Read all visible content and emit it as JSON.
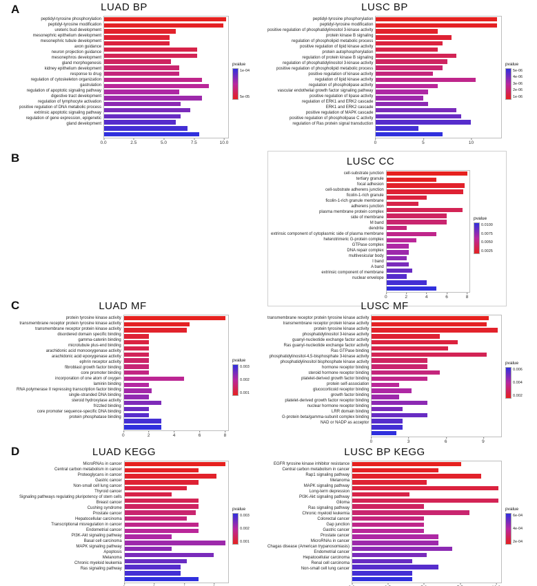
{
  "panels": {
    "a": "A",
    "b": "B",
    "c": "C",
    "d": "D"
  },
  "colors": {
    "background": "#ffffff",
    "bar_red_low_pvalue": "#e6211f",
    "bar_magenta_mid": "#b8279f",
    "bar_blue_high_pvalue": "#3030dd",
    "panel_border": "#bdbdbd"
  },
  "chart_data": [
    {
      "id": "luad-bp",
      "type": "bar",
      "panel": "A",
      "title": "LUAD BP",
      "xlabel": "",
      "ylabel": "",
      "grid": false,
      "legend_position": "right",
      "categories": [
        "peptidyl-tyrosine phosphorylation",
        "peptidyl-tyrosine modification",
        "ureteric bud development",
        "mesonephric epithelium development",
        "mesonephric tubule development",
        "axon guidance",
        "neuron projection guidance",
        "mesonephros development",
        "gland morphogenesis",
        "kidney epithelium development",
        "response to drug",
        "regulation of cytoskeleton organization",
        "gastrulation",
        "regulation of apoptotic signaling pathway",
        "digestive tract development",
        "regulation of lymphocyte activation",
        "positive regulation of DNA metabolic process",
        "extrinsic apoptotic signaling pathway",
        "regulation of gene expression, epigenetic",
        "gland development"
      ],
      "values": [
        10.2,
        10.0,
        6.0,
        5.5,
        5.5,
        7.8,
        7.8,
        5.6,
        6.3,
        6.3,
        8.2,
        8.8,
        6.3,
        8.2,
        6.4,
        7.2,
        6.4,
        6.0,
        7.0,
        8.0
      ],
      "xlim": [
        0,
        10.4
      ],
      "x_tick_labels": [
        "0.0",
        "2.5",
        "5.0",
        "7.5",
        "10.0"
      ],
      "x_tick_values": [
        0,
        2.5,
        5,
        7.5,
        10
      ],
      "legend": {
        "title": "pvalue",
        "ticks": [
          "1e-04",
          "5e-05"
        ]
      }
    },
    {
      "id": "lusc-bp",
      "type": "bar",
      "panel": "A",
      "title": "LUSC BP",
      "xlabel": "",
      "ylabel": "",
      "grid": false,
      "legend_position": "right",
      "categories": [
        "peptidyl-tyrosine phosphorylation",
        "peptidyl-tyrosine modification",
        "positive regulation of phosphatidylinositol 3-kinase activity",
        "protein kinase B signaling",
        "regulation of phospholipid metabolic process",
        "positive regulation of lipid kinase activity",
        "protein autophosphorylation",
        "regulation of protein kinase B signaling",
        "regulation of phosphatidylinositol 3-kinase activity",
        "positive regulation of phospholipid metabolic process",
        "positive regulation of kinase activity",
        "regulation of lipid kinase activity",
        "regulation of phospholipase activity",
        "vascular endothelial growth factor signaling pathway",
        "positive regulation of lipase activity",
        "regulation of ERK1 and ERK2 cascade",
        "ERK1 and ERK2 cascade",
        "positive regulation of MAPK cascade",
        "positive regulation of phospholipase C activity",
        "regulation of Ras protein signal transduction"
      ],
      "values": [
        12.8,
        12.8,
        6.5,
        8.0,
        7.0,
        6.5,
        8.5,
        7.5,
        7.0,
        6.0,
        10.5,
        6.5,
        5.5,
        5.0,
        5.5,
        8.5,
        9.0,
        10.0,
        4.5,
        7.0
      ],
      "xlim": [
        0,
        13.2
      ],
      "x_tick_labels": [
        "0",
        "5",
        "10"
      ],
      "x_tick_values": [
        0,
        5,
        10
      ],
      "legend": {
        "title": "pvalue",
        "ticks": [
          "5e-06",
          "4e-06",
          "3e-06",
          "2e-06",
          "1e-06"
        ]
      }
    },
    {
      "id": "lusc-cc",
      "type": "bar",
      "panel": "B",
      "title": "LUSC CC",
      "xlabel": "",
      "ylabel": "",
      "grid": false,
      "legend_position": "right",
      "categories": [
        "cell-substrate junction",
        "tertiary granule",
        "focal adhesion",
        "cell-substrate adherens junction",
        "ficolin-1-rich granule",
        "ficolin-1-rich granule membrane",
        "adherens junction",
        "plasma membrane protein complex",
        "side of membrane",
        "M band",
        "dendrite",
        "extrinsic component of cytoplasmic side of plasma membrane",
        "heterotrimeric G-protein complex",
        "GTPase complex",
        "DNA repair complex",
        "multivesicular body",
        "I band",
        "A band",
        "extrinsic component of membrane",
        "nuclear envelope"
      ],
      "values": [
        8.1,
        5.0,
        7.8,
        7.7,
        4.0,
        3.2,
        7.6,
        6.0,
        6.0,
        2.0,
        5.0,
        3.0,
        2.2,
        2.2,
        2.0,
        2.2,
        2.6,
        2.0,
        4.0,
        5.0
      ],
      "xlim": [
        0,
        8.3
      ],
      "x_tick_labels": [
        "0",
        "2",
        "4",
        "6",
        "8"
      ],
      "x_tick_values": [
        0,
        2,
        4,
        6,
        8
      ],
      "legend": {
        "title": "pvalue",
        "ticks": [
          "0.0100",
          "0.0075",
          "0.0050",
          "0.0025"
        ]
      }
    },
    {
      "id": "luad-mf",
      "type": "bar",
      "panel": "C",
      "title": "LUAD MF",
      "xlabel": "",
      "ylabel": "",
      "grid": false,
      "legend_position": "right",
      "categories": [
        "protein tyrosine kinase activity",
        "transmembrane receptor protein tyrosine kinase activity",
        "transmembrane receptor protein kinase activity",
        "disordered domain specific binding",
        "gamma-catenin binding",
        "microtubule plus-end binding",
        "arachidonic acid monooxygenase activity",
        "arachidonic acid epoxygenase activity",
        "ephrin receptor activity",
        "fibroblast growth factor binding",
        "core promoter binding",
        "incorporation of one atom of oxygen",
        "laminin binding",
        "RNA polymerase II repressing transcription factor binding",
        "single-stranded DNA binding",
        "steroid hydroxylase activity",
        "frizzled binding",
        "core promoter sequence-specific DNA binding",
        "protein phosphatase binding"
      ],
      "values": [
        8.1,
        5.2,
        5.0,
        2.0,
        2.0,
        2.0,
        2.0,
        2.0,
        2.0,
        2.0,
        4.8,
        2.0,
        2.2,
        2.0,
        3.0,
        2.0,
        2.0,
        3.0,
        3.0
      ],
      "xlim": [
        0,
        8.3
      ],
      "x_tick_labels": [
        "0",
        "2",
        "4",
        "6",
        "8"
      ],
      "x_tick_values": [
        0,
        2,
        4,
        6,
        8
      ],
      "legend": {
        "title": "pvalue",
        "ticks": [
          "0.003",
          "0.002",
          "0.001"
        ]
      }
    },
    {
      "id": "lusc-mf",
      "type": "bar",
      "panel": "C",
      "title": "LUSC MF",
      "xlabel": "",
      "ylabel": "",
      "grid": false,
      "legend_position": "right",
      "categories": [
        "transmembrane receptor protein tyrosine kinase activity",
        "transmembrane receptor protein kinase activity",
        "protein tyrosine kinase activity",
        "phosphatidylinositol 3-kinase activity",
        "guanyl-nucleotide exchange factor activity",
        "Ras guanyl-nucleotide exchange factor activity",
        "Ras GTPase binding",
        "phosphatidylinositol-4,5-bisphosphate 3-kinase activity",
        "phosphatidylinositol bisphosphate kinase activity",
        "hormone receptor binding",
        "steroid hormone receptor binding",
        "platelet-derived growth factor binding",
        "protein self-association",
        "glucocorticoid receptor binding",
        "growth factor binding",
        "platelet-derived growth factor receptor binding",
        "nuclear hormone receptor binding",
        "LRR domain binding",
        "G-protein beta/gamma-subunit complex binding",
        "NAD or NADP as acceptor"
      ],
      "values": [
        9.5,
        9.3,
        10.2,
        5.5,
        7.0,
        6.2,
        9.3,
        4.5,
        4.5,
        5.5,
        4.5,
        2.2,
        3.2,
        2.2,
        4.5,
        2.5,
        4.5,
        2.5,
        2.5,
        2.0
      ],
      "xlim": [
        0,
        10.5
      ],
      "x_tick_labels": [
        "0",
        "3",
        "6",
        "9"
      ],
      "x_tick_values": [
        0,
        3,
        6,
        9
      ],
      "legend": {
        "title": "pvalue",
        "ticks": [
          "0.006",
          "0.004",
          "0.002"
        ]
      }
    },
    {
      "id": "luad-kegg",
      "type": "bar",
      "panel": "D",
      "title": "LUAD KEGG",
      "xlabel": "",
      "ylabel": "",
      "grid": false,
      "legend_position": "right",
      "categories": [
        "MicroRNAs in cancer",
        "Central carbon metabolism in cancer",
        "Proteoglycans in cancer",
        "Gastric cancer",
        "Non-small cell lung cancer",
        "Thyroid cancer",
        "Signaling pathways regulating pluripotency of stem cells",
        "Breast cancer",
        "Cushing syndrome",
        "Prostate cancer",
        "Hepatocellular carcinoma",
        "Transcriptional misregulation in cancer",
        "Endometrial cancer",
        "PI3K-Akt signaling pathway",
        "Basal cell carcinoma",
        "MAPK signaling pathway",
        "Apoptosis",
        "Melanoma",
        "Chronic myeloid leukemia",
        "Ras signaling pathway"
      ],
      "values": [
        6.8,
        5.0,
        6.2,
        5.0,
        4.2,
        3.2,
        5.0,
        5.0,
        4.8,
        4.2,
        5.0,
        5.0,
        3.2,
        6.8,
        3.2,
        6.0,
        4.2,
        3.8,
        3.8,
        5.0
      ],
      "xlim": [
        0,
        7.0
      ],
      "x_tick_labels": [
        "0",
        "2",
        "4",
        "6"
      ],
      "x_tick_values": [
        0,
        2,
        4,
        6
      ],
      "legend": {
        "title": "pvalue",
        "ticks": [
          "0.003",
          "0.002",
          "0.001"
        ]
      }
    },
    {
      "id": "lusc-kegg",
      "type": "bar",
      "panel": "D",
      "title": "LUSC BP KEGG",
      "xlabel": "",
      "ylabel": "",
      "grid": false,
      "legend_position": "right",
      "categories": [
        "EGFR tyrosine kinase inhibitor resistance",
        "Central carbon metabolism in cancer",
        "Rap1 signaling pathway",
        "Melanoma",
        "MAPK signaling pathway",
        "Long-term depression",
        "PI3K-Akt signaling pathway",
        "Glioma",
        "Ras signaling pathway",
        "Chronic myeloid leukemia",
        "Colorectal cancer",
        "Gap junction",
        "Gastric cancer",
        "Prostate cancer",
        "MicroRNAs in cancer",
        "Chagas disease (American trypanosomiasis)",
        "Endometrial cancer",
        "Hepatocellular carcinoma",
        "Renal cell carcinoma",
        "Non-small cell lung cancer"
      ],
      "values": [
        7.6,
        6.0,
        9.0,
        5.2,
        10.2,
        4.0,
        10.2,
        5.0,
        8.2,
        5.0,
        5.0,
        5.0,
        6.0,
        6.0,
        7.0,
        5.2,
        4.2,
        6.0,
        4.2,
        4.2
      ],
      "xlim": [
        0,
        10.4
      ],
      "x_tick_labels": [
        "0.0",
        "2.5",
        "5.0",
        "7.5",
        "10.0"
      ],
      "x_tick_values": [
        0,
        2.5,
        5,
        7.5,
        10
      ],
      "legend": {
        "title": "pvalue",
        "ticks": [
          "6e-04",
          "4e-04",
          "2e-04"
        ]
      }
    }
  ]
}
